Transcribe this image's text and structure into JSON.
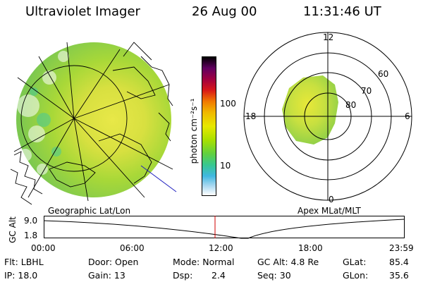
{
  "header": {
    "title": "Ultraviolet Imager",
    "date": "26 Aug 00",
    "time": "11:31:46 UT"
  },
  "colorbar": {
    "unit_label": "photon cm⁻²s⁻¹",
    "ticks": [
      "100",
      "10"
    ],
    "colors": [
      "#000000",
      "#600060",
      "#a00040",
      "#d81818",
      "#f07800",
      "#f0b800",
      "#e8e800",
      "#a8e000",
      "#60d040",
      "#38c890",
      "#40b8e0",
      "#a8d8f0",
      "#ffffff"
    ]
  },
  "geo_panel": {
    "label": "Geographic Lat/Lon"
  },
  "apex_panel": {
    "label": "Apex MLat/MLT",
    "mlt_labels": {
      "top": "12",
      "bottom": "0",
      "left": "18",
      "right": "6"
    },
    "lat_labels": [
      "60",
      "70",
      "80"
    ]
  },
  "timeline": {
    "ylabel": "GC Alt",
    "yticks": [
      "9.0",
      "1.8"
    ],
    "xticks": [
      "00:00",
      "06:00",
      "12:00",
      "18:00",
      "23:59"
    ]
  },
  "info": {
    "row1": {
      "flt": "Flt: LBHL",
      "door": "Door: Open",
      "mode": "Mode: Normal",
      "gcalt": "GC Alt: 4.8 Re",
      "glat": "GLat:",
      "glat_val": "85.4"
    },
    "row2": {
      "ip": "IP: 18.0",
      "gain": "Gain: 13",
      "dsp": "Dsp:",
      "dsp_val": "2.4",
      "seq": "Seq: 30",
      "glon": "GLon:",
      "glon_val": "35.6"
    }
  },
  "colors": {
    "aurora_green": "#a8d838",
    "aurora_yellow": "#e0e040",
    "marker_red": "#d00000",
    "boundary_blue": "#2020c0"
  }
}
